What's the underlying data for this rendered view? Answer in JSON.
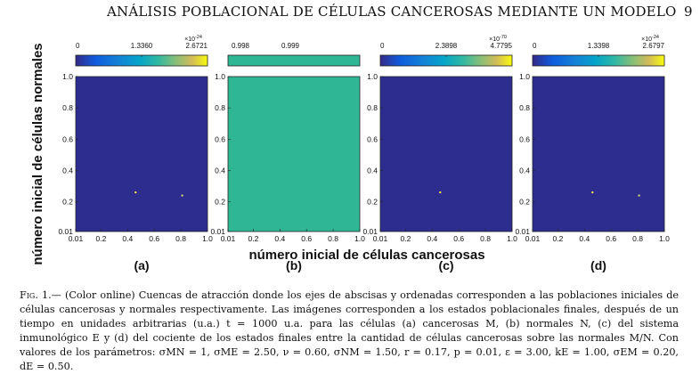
{
  "header": {
    "title": "ANÁLISIS POBLACIONAL DE CÉLULAS CANCEROSAS MEDIANTE UN MODELO",
    "page_number": "9"
  },
  "figure": {
    "y_axis_label": "número inicial de células normales",
    "x_axis_label": "número inicial de células cancerosas",
    "y_ticks": [
      "1.0",
      "0.8",
      "0.6",
      "0.4",
      "0.2",
      "0.01"
    ],
    "x_ticks": [
      "0.01",
      "0.2",
      "0.4",
      "0.6",
      "0.8",
      "1.0"
    ],
    "panels": [
      {
        "label": "(a)",
        "colorbar_ticks": [
          "0",
          "1.3360",
          "2.6721"
        ],
        "colorbar_exponent_base": "×10",
        "colorbar_exponent": "-24",
        "fill_color": "#2c2d8f",
        "points": [
          [
            0.46,
            0.26
          ],
          [
            0.81,
            0.24
          ]
        ]
      },
      {
        "label": "(b)",
        "colorbar_ticks": [
          "0.998",
          "0.999"
        ],
        "colorbar_exponent_base": "",
        "colorbar_exponent": "",
        "fill_color": "#2fb795",
        "points": []
      },
      {
        "label": "(c)",
        "colorbar_ticks": [
          "0",
          "2.3898",
          "4.7795"
        ],
        "colorbar_exponent_base": "×10",
        "colorbar_exponent": "-70",
        "fill_color": "#2c2d8f",
        "points": [
          [
            0.46,
            0.26
          ]
        ]
      },
      {
        "label": "(d)",
        "colorbar_ticks": [
          "0",
          "1.3398",
          "2.6797"
        ],
        "colorbar_exponent_base": "×10",
        "colorbar_exponent": "-24",
        "fill_color": "#2c2d8f",
        "points": [
          [
            0.46,
            0.26
          ],
          [
            0.81,
            0.24
          ]
        ]
      }
    ]
  },
  "caption": {
    "fig_label": "Fig. 1.",
    "text": "— (Color online) Cuencas de atracción donde los ejes de abscisas y ordenadas corresponden a las poblaciones iniciales de células cancerosas y normales respectivamente. Las imágenes corresponden a los estados poblacionales finales, después de un tiempo en unidades arbitrarias (u.a.) t = 1000 u.a. para las células (a) cancerosas M, (b) normales N, (c) del sistema inmunológico E y (d) del cociente de los estados finales entre la cantidad de células cancerosas sobre las normales M/N. Con valores de los parámetros: σMN = 1, σME = 2.50, ν = 0.60, σNM = 1.50, r = 0.17, p = 0.01, ε = 3.00, kE = 1.00, σEM = 0.20, dE = 0.50."
  }
}
